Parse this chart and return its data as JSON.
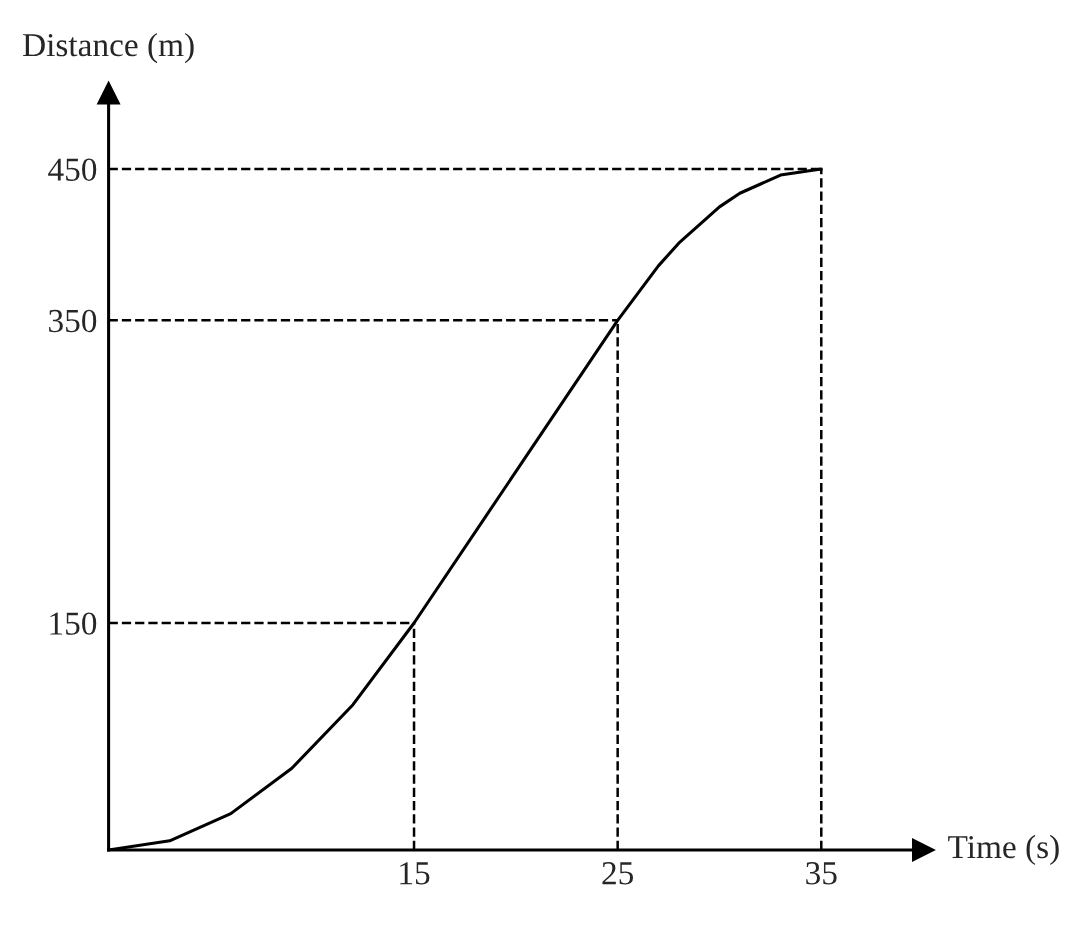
{
  "chart_data": {
    "type": "line",
    "xlabel": "Time (s)",
    "ylabel": "Distance (m)",
    "x": [
      0,
      3,
      6,
      9,
      12,
      15,
      25,
      27,
      28,
      30,
      31,
      33,
      35
    ],
    "series": [
      {
        "color": "#000000",
        "values": [
          0,
          6,
          24,
          54,
          96,
          150,
          350,
          386,
          401,
          425,
          434,
          446,
          450
        ]
      }
    ],
    "xlim": [
      0,
      40
    ],
    "ylim": [
      0,
      500
    ],
    "xticks": [
      15,
      25,
      35
    ],
    "yticks": [
      150,
      350,
      450
    ],
    "ref_lines": [
      {
        "axis": "x",
        "value": 15,
        "line_style": "dashed"
      },
      {
        "axis": "x",
        "value": 25,
        "line_style": "dashed"
      },
      {
        "axis": "x",
        "value": 35,
        "line_style": "dashed"
      },
      {
        "axis": "y",
        "value": 150,
        "line_style": "dashed"
      },
      {
        "axis": "y",
        "value": 350,
        "line_style": "dashed"
      },
      {
        "axis": "y",
        "value": 450,
        "line_style": "dashed"
      }
    ],
    "grid": false,
    "legend": false,
    "marker": "none",
    "line_style": "solid"
  }
}
